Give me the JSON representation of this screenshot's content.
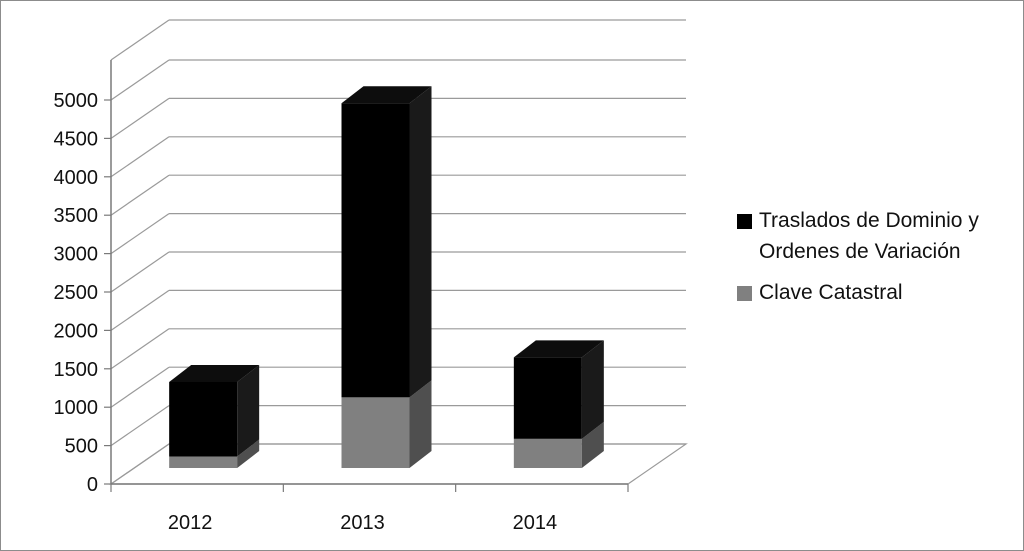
{
  "chart_data": {
    "type": "bar",
    "stacked": true,
    "three_d": true,
    "categories": [
      "2012",
      "2013",
      "2014"
    ],
    "series": [
      {
        "name": "Clave Catastral",
        "values": [
          150,
          920,
          380
        ],
        "color": "#808080"
      },
      {
        "name": "Traslados de Dominio y Ordenes de Variación",
        "values": [
          970,
          3830,
          1060
        ],
        "color": "#000000"
      }
    ],
    "ylim": [
      0,
      5000
    ],
    "yticks": [
      0,
      500,
      1000,
      1500,
      2000,
      2500,
      3000,
      3500,
      4000,
      4500,
      5000
    ],
    "grid": true,
    "legend_position": "right"
  },
  "legend": {
    "items": [
      {
        "label": "Traslados de Dominio y Ordenes de Variación",
        "color": "#000000"
      },
      {
        "label": "Clave Catastral",
        "color": "#808080"
      }
    ]
  }
}
